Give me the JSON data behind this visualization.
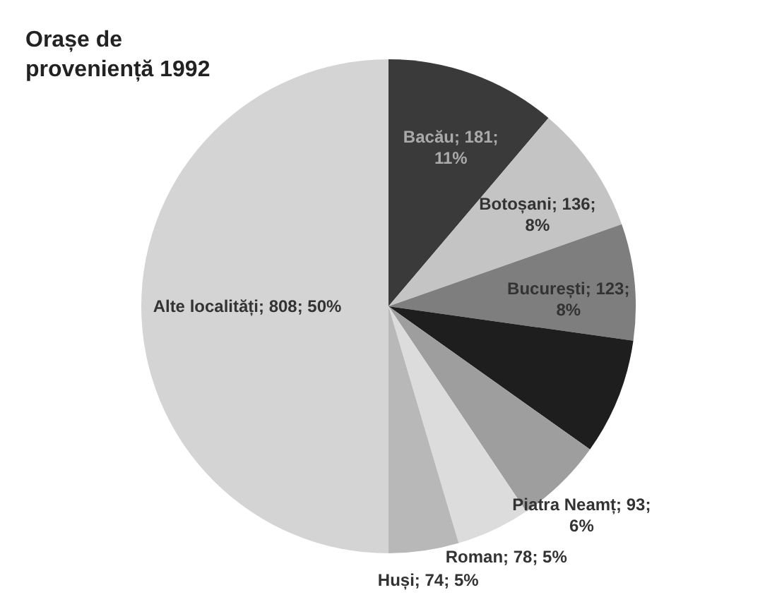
{
  "chart_data": {
    "type": "pie",
    "title": "Orașe de proveniență 1992",
    "categories": [
      "Bacău",
      "Botoșani",
      "București",
      null,
      "Piatra Neamț",
      "Roman",
      "Huși",
      "Alte localități"
    ],
    "values": [
      181,
      136,
      123,
      123,
      93,
      78,
      74,
      808
    ],
    "value_labels": [
      "181; 11%",
      "136; 8%",
      "123; 8%",
      null,
      "93; 6%",
      "78; 5%",
      "74; 5%",
      "808; 50%"
    ],
    "colors": [
      "#3a3a3a",
      "#c4c4c4",
      "#7e7e7e",
      "#1e1e1e",
      "#9e9e9e",
      "#dcdcdc",
      "#b8b8b8",
      "#d4d4d4"
    ],
    "legend": false
  }
}
